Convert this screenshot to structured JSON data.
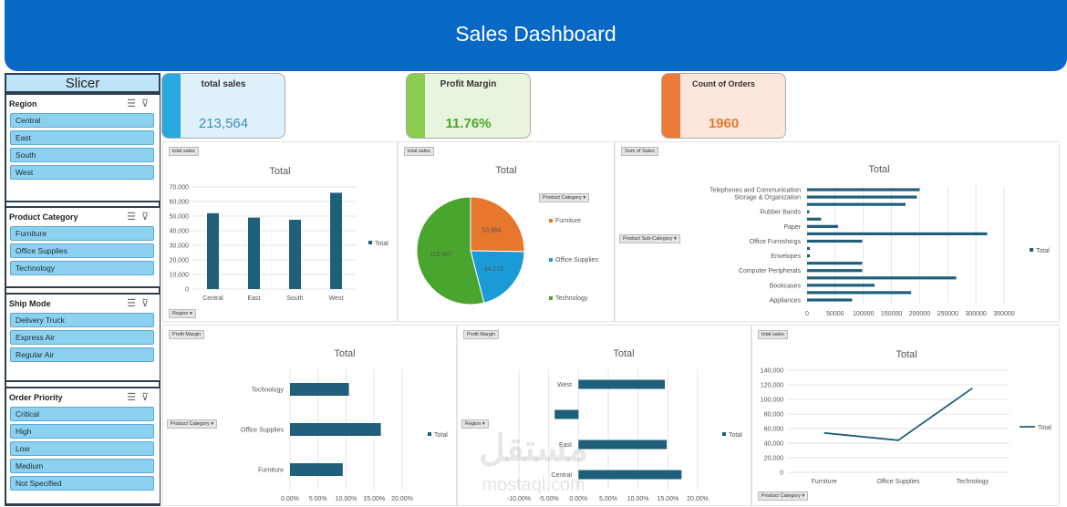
{
  "header": {
    "title": "Sales Dashboard"
  },
  "slicer": {
    "title": "Slicer",
    "groups": [
      {
        "label": "Region",
        "items": [
          "Central",
          "East",
          "South",
          "West"
        ]
      },
      {
        "label": "Product Category",
        "items": [
          "Furniture",
          "Office Supplies",
          "Technology"
        ]
      },
      {
        "label": "Ship Mode",
        "items": [
          "Delivery Truck",
          "Express Air",
          "Regular Air"
        ]
      },
      {
        "label": "Order Priority",
        "items": [
          "Critical",
          "High",
          "Low",
          "Medium",
          "Not Specified"
        ]
      }
    ]
  },
  "kpis": {
    "total_sales": {
      "label": "total sales",
      "value": "213,564",
      "color": "#29a8e0",
      "bg": "#dff1fb"
    },
    "profit_margin": {
      "label": "Profit Margin",
      "value": "11.76%",
      "color": "#8ccc4e",
      "bg": "#e8f5de"
    },
    "count_orders": {
      "label": "Count of Orders",
      "value": "1960",
      "color": "#ec7b38",
      "bg": "#fde7dc"
    }
  },
  "watermark": {
    "text1": "مستقل",
    "text2": "mostaql.com"
  },
  "chart_data": [
    {
      "id": "region_bar",
      "type": "bar",
      "tag": "total sales",
      "title": "Total",
      "categories": [
        "Central",
        "East",
        "South",
        "West"
      ],
      "series": [
        {
          "name": "Total",
          "values": [
            52000,
            49000,
            47500,
            66000
          ]
        }
      ],
      "yticks": [
        "0",
        "10,000",
        "20,000",
        "30,000",
        "40,000",
        "50,000",
        "60,000",
        "70,000"
      ],
      "ylim": [
        0,
        70000
      ],
      "field_button": "Region",
      "color": "#1f5f7a"
    },
    {
      "id": "category_pie",
      "type": "pie",
      "tag": "total sales",
      "title": "Total",
      "categories": [
        "Furniture",
        "Office Supplies",
        "Technology"
      ],
      "values": [
        53984,
        44173,
        115407
      ],
      "labels": [
        "53,984",
        "44,173",
        "115,407"
      ],
      "colors": [
        "#e8772e",
        "#1a9ad6",
        "#4aa52e"
      ],
      "field_button": "Product Category"
    },
    {
      "id": "subcat_hbar",
      "type": "bar",
      "tag": "Sum of Sales",
      "title": "Total",
      "categories": [
        "Appliances",
        "",
        "Bookcases",
        "",
        "Computer Peripherals",
        "",
        "Envelopes",
        "",
        "Office Furnishings",
        "",
        "Paper",
        "",
        "Rubber Bands",
        "",
        "Storage & Organization",
        "Telephones and Communication"
      ],
      "series": [
        {
          "name": "Total",
          "values": [
            80000,
            185000,
            120000,
            265000,
            98000,
            98000,
            5000,
            5000,
            98000,
            320000,
            55000,
            25000,
            4000,
            175000,
            195000,
            200000
          ]
        }
      ],
      "xticks": [
        "0",
        "50000",
        "100000",
        "150000",
        "200000",
        "250000",
        "300000",
        "350000"
      ],
      "xlim": [
        0,
        350000
      ],
      "field_button": "Product Sub-Category",
      "color": "#1f5f7a"
    },
    {
      "id": "margin_category",
      "type": "bar",
      "tag": "Profit Margin",
      "title": "Total",
      "categories": [
        "Furniture",
        "Office Supplies",
        "Technology"
      ],
      "series": [
        {
          "name": "Total",
          "values": [
            9.4,
            16.2,
            10.5
          ]
        }
      ],
      "xticks": [
        "0.00%",
        "5.00%",
        "10.00%",
        "15.00%",
        "20.00%"
      ],
      "xlim": [
        0,
        20
      ],
      "field_button": "Product Category",
      "color": "#1f5f7a"
    },
    {
      "id": "margin_region",
      "type": "bar",
      "tag": "Profit Margin",
      "title": "Total",
      "categories": [
        "Central",
        "East",
        "",
        "West"
      ],
      "series": [
        {
          "name": "Total",
          "values": [
            17.3,
            14.8,
            -4.0,
            14.5
          ]
        }
      ],
      "xticks": [
        "-10.00%",
        "-5.00%",
        "0.00%",
        "5.00%",
        "10.00%",
        "15.00%",
        "20.00%"
      ],
      "xlim": [
        -10,
        20
      ],
      "field_button": "Region",
      "color": "#1f5f7a"
    },
    {
      "id": "category_line",
      "type": "line",
      "tag": "total sales",
      "title": "Total",
      "categories": [
        "Furniture",
        "Office Supplies",
        "Technology"
      ],
      "series": [
        {
          "name": "Total",
          "values": [
            54000,
            44000,
            115400
          ]
        }
      ],
      "yticks": [
        "0",
        "20,000",
        "40,000",
        "60,000",
        "80,000",
        "100,000",
        "120,000",
        "140,000"
      ],
      "ylim": [
        0,
        140000
      ],
      "field_button": "Product Category",
      "color": "#1f5f7a"
    }
  ]
}
